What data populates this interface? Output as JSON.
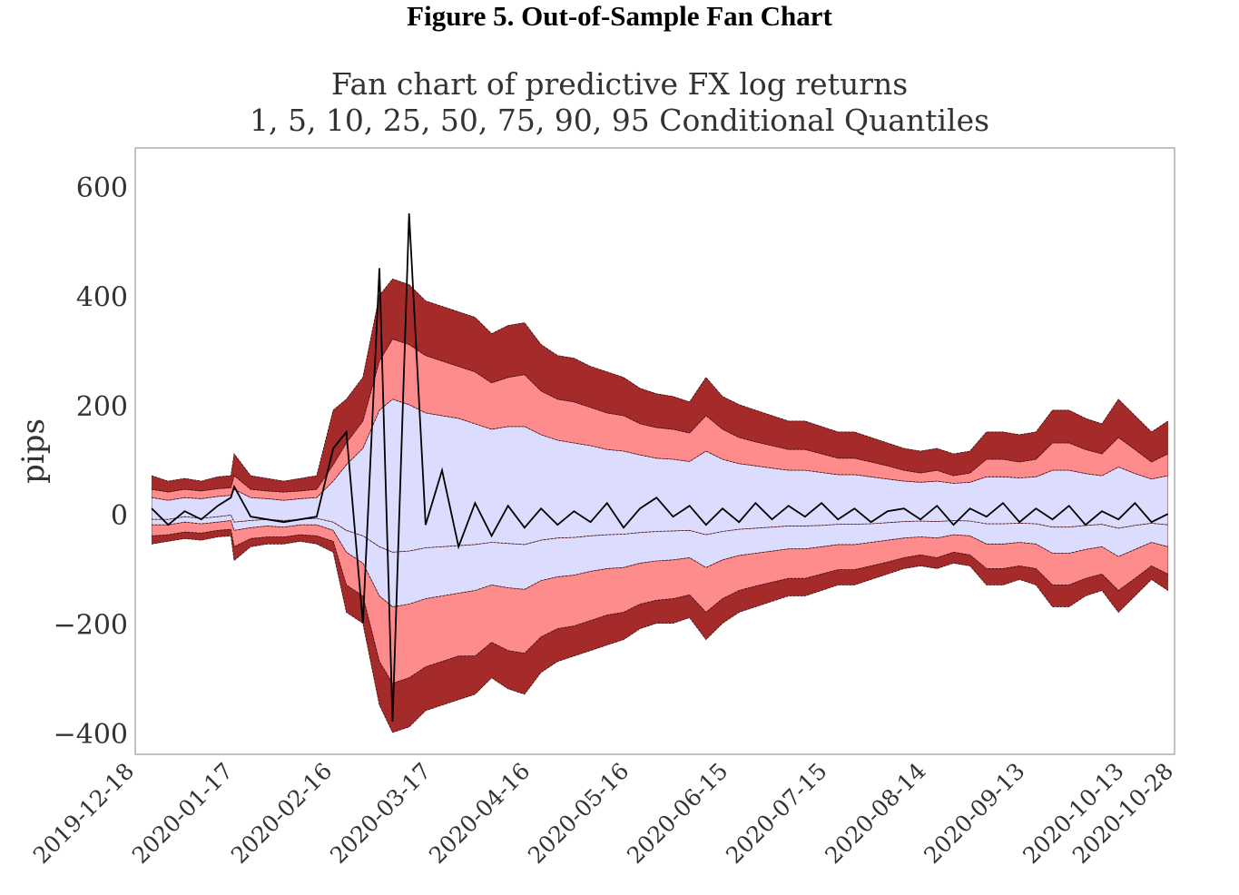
{
  "figure_title": "Figure 5. Out-of-Sample Fan Chart",
  "chart_data": {
    "type": "area",
    "title_line1": "Fan chart of predictive FX log returns",
    "title_line2": "1, 5, 10, 25, 50, 75, 90, 95 Conditional Quantiles",
    "ylabel": "pips",
    "xlabel": "",
    "ylim": [
      -440,
      670
    ],
    "y_ticks": [
      600,
      400,
      200,
      0,
      -200,
      -400
    ],
    "y_tick_labels": [
      "600",
      "400",
      "200",
      "0",
      "−200",
      "−400"
    ],
    "x_tick_labels": [
      "2019-12-18",
      "2020-01-17",
      "2020-02-16",
      "2020-03-17",
      "2020-04-16",
      "2020-05-16",
      "2020-06-15",
      "2020-07-15",
      "2020-08-14",
      "2020-09-13",
      "2020-10-13",
      "2020-10-28"
    ],
    "xlim": [
      "2019-12-18",
      "2020-10-28"
    ],
    "grid": false,
    "colors": {
      "outer": "#a52a2a",
      "mid": "#ff8c8c",
      "inner": "#dcdcff",
      "median": "#000000",
      "frame": "#999999"
    },
    "x": [
      "2019-12-23",
      "2019-12-28",
      "2020-01-02",
      "2020-01-07",
      "2020-01-12",
      "2020-01-16",
      "2020-01-17",
      "2020-01-22",
      "2020-01-27",
      "2020-02-01",
      "2020-02-06",
      "2020-02-11",
      "2020-02-16",
      "2020-02-20",
      "2020-02-25",
      "2020-03-01",
      "2020-03-05",
      "2020-03-10",
      "2020-03-15",
      "2020-03-20",
      "2020-03-25",
      "2020-03-30",
      "2020-04-04",
      "2020-04-09",
      "2020-04-14",
      "2020-04-19",
      "2020-04-24",
      "2020-04-29",
      "2020-05-04",
      "2020-05-09",
      "2020-05-14",
      "2020-05-19",
      "2020-05-24",
      "2020-05-29",
      "2020-06-03",
      "2020-06-08",
      "2020-06-13",
      "2020-06-18",
      "2020-06-23",
      "2020-06-28",
      "2020-07-03",
      "2020-07-08",
      "2020-07-13",
      "2020-07-18",
      "2020-07-23",
      "2020-07-28",
      "2020-08-02",
      "2020-08-07",
      "2020-08-12",
      "2020-08-17",
      "2020-08-22",
      "2020-08-27",
      "2020-09-01",
      "2020-09-06",
      "2020-09-11",
      "2020-09-16",
      "2020-09-21",
      "2020-09-26",
      "2020-10-01",
      "2020-10-06",
      "2020-10-11",
      "2020-10-16",
      "2020-10-21",
      "2020-10-26"
    ],
    "series": [
      {
        "values": [
          -55,
          -50,
          -45,
          -48,
          -42,
          -40,
          -85,
          -60,
          -55,
          -55,
          -50,
          -55,
          -70,
          -180,
          -200,
          -350,
          -400,
          -390,
          -360,
          -350,
          -340,
          -330,
          -300,
          -320,
          -330,
          -290,
          -270,
          -260,
          -250,
          -240,
          -230,
          -210,
          -200,
          -200,
          -190,
          -230,
          -200,
          -180,
          -170,
          -160,
          -150,
          -150,
          -140,
          -130,
          -130,
          -120,
          -110,
          -100,
          -95,
          -100,
          -90,
          -95,
          -130,
          -130,
          -120,
          -130,
          -170,
          -170,
          -150,
          -140,
          -180,
          -150,
          -120,
          -140
        ]
      },
      {
        "values": [
          -40,
          -38,
          -33,
          -35,
          -30,
          -28,
          -60,
          -45,
          -42,
          -42,
          -38,
          -40,
          -50,
          -130,
          -150,
          -270,
          -310,
          -300,
          -280,
          -270,
          -260,
          -260,
          -235,
          -250,
          -255,
          -225,
          -210,
          -205,
          -195,
          -185,
          -180,
          -165,
          -158,
          -155,
          -148,
          -180,
          -155,
          -140,
          -132,
          -125,
          -118,
          -118,
          -110,
          -102,
          -102,
          -95,
          -88,
          -80,
          -75,
          -80,
          -70,
          -75,
          -100,
          -100,
          -95,
          -100,
          -130,
          -130,
          -118,
          -110,
          -140,
          -118,
          -95,
          -110
        ]
      },
      {
        "values": [
          -20,
          -20,
          -15,
          -18,
          -15,
          -12,
          -30,
          -25,
          -22,
          -24,
          -20,
          -20,
          -30,
          -70,
          -90,
          -150,
          -170,
          -165,
          -155,
          -150,
          -145,
          -140,
          -130,
          -135,
          -138,
          -122,
          -115,
          -112,
          -105,
          -100,
          -98,
          -90,
          -86,
          -84,
          -80,
          -98,
          -84,
          -76,
          -72,
          -68,
          -64,
          -64,
          -60,
          -56,
          -56,
          -52,
          -48,
          -44,
          -42,
          -44,
          -38,
          -40,
          -55,
          -55,
          -52,
          -55,
          -72,
          -72,
          -65,
          -60,
          -78,
          -65,
          -52,
          -60
        ]
      },
      {
        "values": [
          -10,
          -10,
          -5,
          -8,
          -5,
          -2,
          -15,
          -12,
          -10,
          -12,
          -10,
          -8,
          -15,
          -30,
          -40,
          -60,
          -70,
          -68,
          -62,
          -60,
          -58,
          -56,
          -52,
          -54,
          -56,
          -48,
          -44,
          -43,
          -40,
          -38,
          -37,
          -34,
          -32,
          -31,
          -30,
          -38,
          -32,
          -28,
          -26,
          -24,
          -22,
          -22,
          -21,
          -19,
          -19,
          -18,
          -16,
          -14,
          -13,
          -14,
          -12,
          -13,
          -18,
          -18,
          -17,
          -18,
          -24,
          -24,
          -21,
          -19,
          -26,
          -21,
          -17,
          -20
        ]
      },
      {
        "values": [
          10,
          -20,
          5,
          -10,
          15,
          30,
          50,
          -5,
          -10,
          -15,
          -10,
          -5,
          120,
          150,
          -200,
          450,
          -380,
          550,
          -20,
          80,
          -60,
          20,
          -40,
          15,
          -25,
          10,
          -20,
          5,
          -15,
          20,
          -25,
          10,
          30,
          -5,
          15,
          -20,
          10,
          -15,
          20,
          -10,
          15,
          -5,
          20,
          -10,
          10,
          -15,
          5,
          10,
          -10,
          15,
          -20,
          10,
          -5,
          20,
          -15,
          10,
          -10,
          15,
          -20,
          5,
          -10,
          20,
          -15,
          0
        ]
      },
      {
        "values": [
          30,
          25,
          30,
          28,
          32,
          34,
          45,
          30,
          28,
          25,
          28,
          30,
          60,
          90,
          120,
          190,
          210,
          200,
          185,
          180,
          175,
          165,
          155,
          160,
          160,
          145,
          135,
          130,
          125,
          118,
          115,
          108,
          102,
          100,
          96,
          115,
          100,
          92,
          88,
          84,
          80,
          80,
          76,
          72,
          72,
          68,
          64,
          60,
          58,
          60,
          56,
          58,
          68,
          68,
          66,
          68,
          80,
          80,
          74,
          70,
          86,
          74,
          64,
          70
        ]
      },
      {
        "values": [
          45,
          40,
          45,
          42,
          46,
          48,
          70,
          45,
          42,
          40,
          42,
          45,
          90,
          130,
          170,
          280,
          320,
          310,
          290,
          280,
          270,
          260,
          240,
          250,
          255,
          225,
          210,
          205,
          195,
          185,
          180,
          165,
          158,
          155,
          148,
          180,
          155,
          140,
          132,
          125,
          118,
          118,
          110,
          102,
          102,
          95,
          88,
          80,
          75,
          80,
          70,
          75,
          100,
          100,
          95,
          100,
          130,
          130,
          118,
          110,
          140,
          118,
          95,
          110
        ]
      },
      {
        "values": [
          70,
          60,
          65,
          60,
          68,
          70,
          110,
          70,
          65,
          60,
          65,
          70,
          190,
          210,
          250,
          400,
          430,
          420,
          390,
          380,
          370,
          360,
          330,
          345,
          350,
          310,
          290,
          285,
          270,
          260,
          250,
          230,
          220,
          215,
          205,
          250,
          215,
          200,
          190,
          180,
          170,
          170,
          160,
          150,
          150,
          140,
          130,
          120,
          115,
          120,
          110,
          115,
          150,
          150,
          145,
          150,
          190,
          190,
          175,
          165,
          210,
          180,
          150,
          170
        ]
      }
    ]
  }
}
